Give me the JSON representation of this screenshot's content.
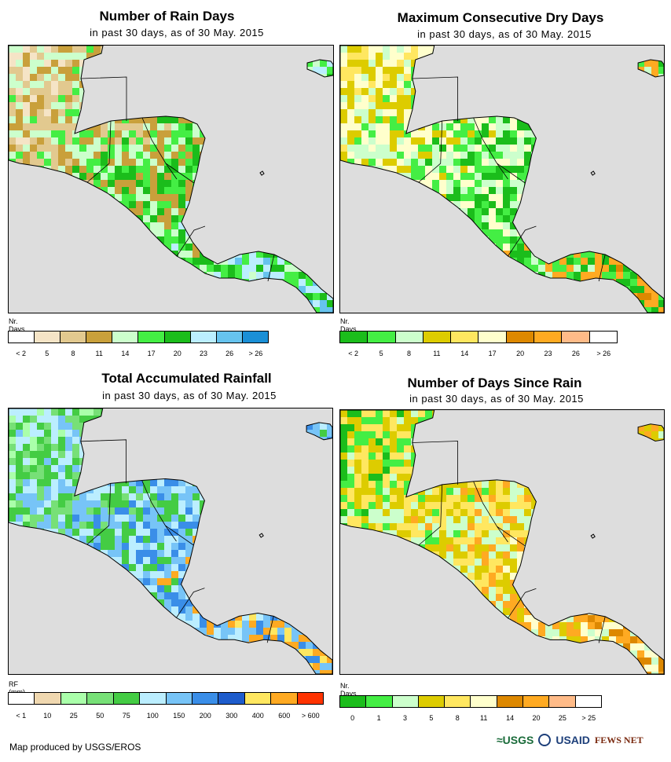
{
  "colors": {
    "map_background": "#dddddd",
    "coast": "#000000"
  },
  "panels": [
    {
      "id": "rain-days",
      "title": "Number of Rain Days",
      "subtitle": "in past 30 days, as of 30 May. 2015",
      "unit": "Nr. Days",
      "legend_colors": [
        "#ffffff",
        "#f5e4c6",
        "#e2c98f",
        "#c9a03b",
        "#ccffcc",
        "#44ee44",
        "#1bbd1b",
        "#bbeeff",
        "#66c3ee",
        "#1a8fd6"
      ],
      "tick_labels": [
        "< 2",
        "5",
        "8",
        "11",
        "14",
        "17",
        "20",
        "23",
        "26",
        "> 26"
      ],
      "palette": [
        "#f5e4c6",
        "#e2c98f",
        "#c9a03b",
        "#ccffcc",
        "#44ee44",
        "#1bbd1b",
        "#bbeeff",
        "#66c3ee"
      ]
    },
    {
      "id": "dry-days",
      "title": "Maximum Consecutive Dry Days",
      "subtitle": "in past 30 days, as of 30 May. 2015",
      "unit": "Nr. Days",
      "legend_colors": [
        "#1bbd1b",
        "#44ee44",
        "#ccffcc",
        "#ddcc00",
        "#ffe760",
        "#ffffcc",
        "#dd8800",
        "#ffaa22",
        "#ffbb88",
        "#ffffff"
      ],
      "tick_labels": [
        "< 2",
        "5",
        "8",
        "11",
        "14",
        "17",
        "20",
        "23",
        "26",
        "> 26"
      ],
      "palette": [
        "#ffe760",
        "#ddcc00",
        "#ffffcc",
        "#ccffcc",
        "#44ee44",
        "#1bbd1b",
        "#ffaa22",
        "#dd8800"
      ]
    },
    {
      "id": "rainfall",
      "title": "Total Accumulated Rainfall",
      "subtitle": "in past 30 days, as of 30 May. 2015",
      "unit": "RF (mm)",
      "legend_colors": [
        "#ffffff",
        "#f0d8b0",
        "#aaffaa",
        "#77e077",
        "#44cc44",
        "#bbeeff",
        "#77c4f7",
        "#3a8ee8",
        "#1e5ccc",
        "#ffe760",
        "#ffaa22",
        "#ff3300"
      ],
      "tick_labels": [
        "< 1",
        "10",
        "25",
        "50",
        "75",
        "100",
        "150",
        "200",
        "300",
        "400",
        "600",
        "> 600"
      ],
      "palette": [
        "#aaffaa",
        "#77e077",
        "#44cc44",
        "#bbeeff",
        "#77c4f7",
        "#3a8ee8",
        "#ffaa22",
        "#ffe760"
      ]
    },
    {
      "id": "since-rain",
      "title": "Number of Days Since Rain",
      "subtitle": "in past 30 days, as of 30 May. 2015",
      "unit": "Nr. Days",
      "legend_colors": [
        "#1bbd1b",
        "#44ee44",
        "#ccffcc",
        "#ddcc00",
        "#ffe760",
        "#ffffcc",
        "#dd8800",
        "#ffaa22",
        "#ffbb88",
        "#ffffff"
      ],
      "tick_labels": [
        "0",
        "1",
        "3",
        "5",
        "8",
        "11",
        "14",
        "20",
        "25",
        "> 25"
      ],
      "palette": [
        "#1bbd1b",
        "#44ee44",
        "#ffe760",
        "#ddcc00",
        "#ccffcc",
        "#ffaa22",
        "#ffffcc",
        "#dd8800"
      ]
    }
  ],
  "footer": {
    "credit": "Map produced by USGS/EROS",
    "logo_usgs": "≈USGS",
    "logo_usaid": "USAID",
    "logo_fews": "FEWS NET"
  }
}
